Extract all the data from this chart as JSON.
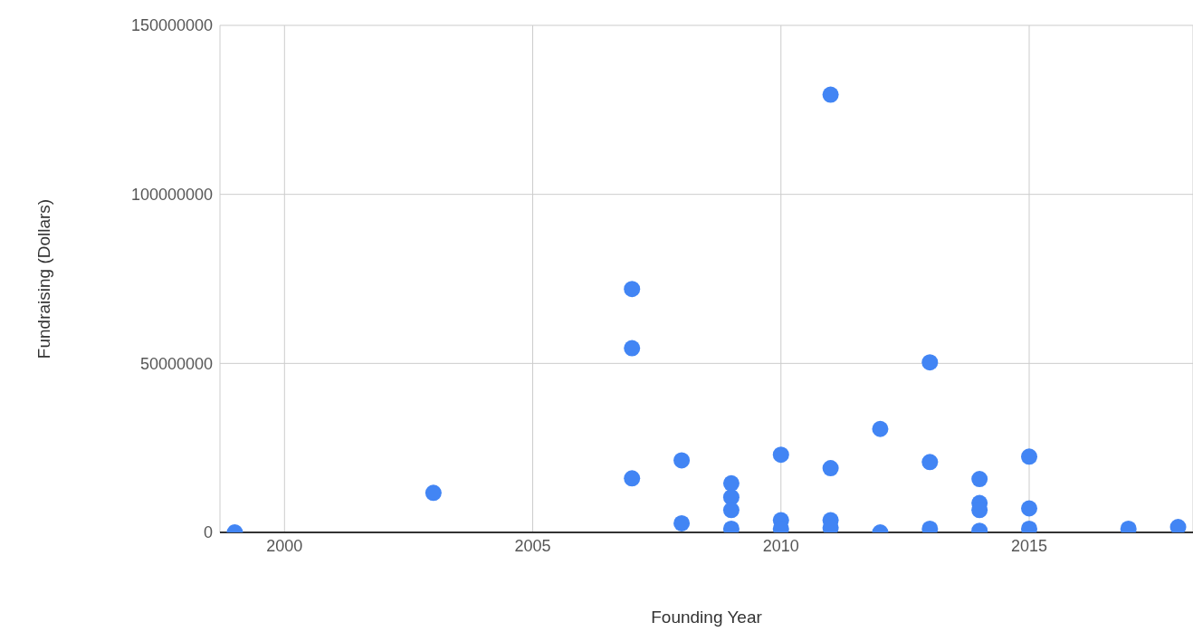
{
  "chart_data": {
    "type": "scatter",
    "xlabel": "Founding Year",
    "ylabel": "Fundraising (Dollars)",
    "x": [
      1999,
      2003,
      2007,
      2007,
      2007,
      2008,
      2008,
      2009,
      2009,
      2009,
      2009,
      2010,
      2010,
      2010,
      2011,
      2011,
      2011,
      2011,
      2012,
      2012,
      2013,
      2013,
      2013,
      2014,
      2014,
      2014,
      2014,
      2015,
      2015,
      2015,
      2017,
      2018
    ],
    "series": [
      {
        "color": "#4285f4",
        "values": [
          0,
          11700000,
          72000000,
          54500000,
          16000000,
          21300000,
          2700000,
          14500000,
          10400000,
          6600000,
          1100000,
          23000000,
          3600000,
          1100000,
          129500000,
          19000000,
          3600000,
          1400000,
          30600000,
          0,
          50300000,
          20800000,
          1100000,
          15800000,
          8700000,
          6600000,
          500000,
          22400000,
          7100000,
          1100000,
          1100000,
          1600000
        ]
      }
    ],
    "xlim": [
      1998.7,
      2018.3
    ],
    "xticks": [
      2000,
      2005,
      2010,
      2015
    ],
    "ylim": [
      0,
      150000000
    ],
    "yticks": [
      0,
      50000000,
      100000000,
      150000000
    ],
    "grid": true,
    "marker": "circle"
  }
}
